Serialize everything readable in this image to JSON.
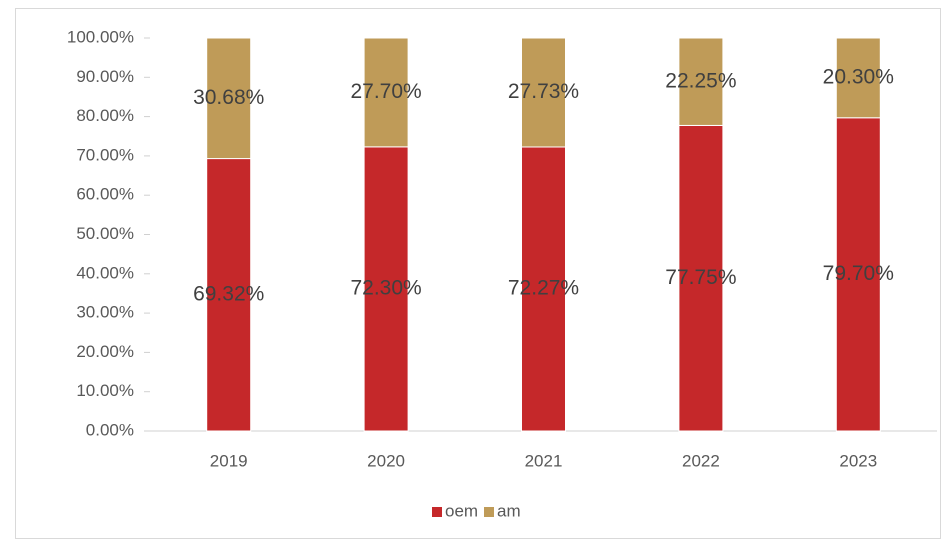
{
  "chart_data": {
    "type": "stacked_bar",
    "categories": [
      "2019",
      "2020",
      "2021",
      "2022",
      "2023"
    ],
    "series": [
      {
        "name": "oem",
        "color": "#c5282a",
        "values": [
          69.32,
          72.3,
          72.27,
          77.75,
          79.7
        ],
        "value_labels": [
          "69.32%",
          "72.30%",
          "72.27%",
          "77.75%",
          "79.70%"
        ]
      },
      {
        "name": "am",
        "color": "#bf9b58",
        "values": [
          30.68,
          27.7,
          27.73,
          22.25,
          20.3
        ],
        "value_labels": [
          "30.68%",
          "27.70%",
          "27.73%",
          "22.25%",
          "20.30%"
        ]
      }
    ],
    "ylim": [
      0,
      100
    ],
    "yticks": [
      {
        "value": 0,
        "label": "0.00%"
      },
      {
        "value": 10,
        "label": "10.00%"
      },
      {
        "value": 20,
        "label": "20.00%"
      },
      {
        "value": 30,
        "label": "30.00%"
      },
      {
        "value": 40,
        "label": "40.00%"
      },
      {
        "value": 50,
        "label": "50.00%"
      },
      {
        "value": 60,
        "label": "60.00%"
      },
      {
        "value": 70,
        "label": "70.00%"
      },
      {
        "value": 80,
        "label": "80.00%"
      },
      {
        "value": 90,
        "label": "90.00%"
      },
      {
        "value": 100,
        "label": "100.00%"
      }
    ],
    "grid": false,
    "legend": "bottom"
  }
}
